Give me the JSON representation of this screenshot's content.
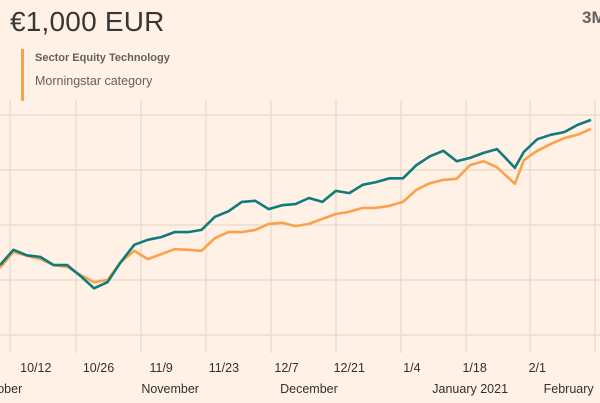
{
  "header": {
    "title": "€1,000 EUR",
    "range_button": "3M"
  },
  "legend": {
    "name": "Sector Equity Technology",
    "subtitle": "Morningstar category"
  },
  "colors": {
    "background": "#fff1e5",
    "fund": "#0f7b7c",
    "category": "#f9a24b",
    "grid": "#ecdccb"
  },
  "chart_data": {
    "type": "line",
    "title": "€1,000 EUR",
    "xlabel": "",
    "ylabel": "",
    "grid": true,
    "legend_position": "top-left",
    "xlim": [
      "2020-10-04",
      "2021-02-15"
    ],
    "ylim": [
      0,
      4
    ],
    "x_tick_labels": [
      {
        "date": "2020-10-12",
        "label": "10/12"
      },
      {
        "date": "2020-10-26",
        "label": "10/26"
      },
      {
        "date": "2020-11-09",
        "label": "11/9"
      },
      {
        "date": "2020-11-23",
        "label": "11/23"
      },
      {
        "date": "2020-12-07",
        "label": "12/7"
      },
      {
        "date": "2020-12-21",
        "label": "12/21"
      },
      {
        "date": "2021-01-04",
        "label": "1/4"
      },
      {
        "date": "2021-01-18",
        "label": "1/18"
      },
      {
        "date": "2021-02-01",
        "label": "2/1"
      }
    ],
    "month_labels": [
      {
        "date": "2020-10-04",
        "label": "October"
      },
      {
        "date": "2020-11-11",
        "label": "November"
      },
      {
        "date": "2020-12-12",
        "label": "December"
      },
      {
        "date": "2021-01-17",
        "label": "January 2021"
      },
      {
        "date": "2021-02-08",
        "label": "February"
      }
    ],
    "x": [
      "2020-10-04",
      "2020-10-07",
      "2020-10-10",
      "2020-10-13",
      "2020-10-16",
      "2020-10-19",
      "2020-10-22",
      "2020-10-25",
      "2020-10-28",
      "2020-10-31",
      "2020-11-03",
      "2020-11-06",
      "2020-11-09",
      "2020-11-12",
      "2020-11-15",
      "2020-11-18",
      "2020-11-21",
      "2020-11-24",
      "2020-11-27",
      "2020-11-30",
      "2020-12-03",
      "2020-12-06",
      "2020-12-09",
      "2020-12-12",
      "2020-12-15",
      "2020-12-18",
      "2020-12-21",
      "2020-12-24",
      "2020-12-27",
      "2020-12-30",
      "2021-01-02",
      "2021-01-05",
      "2021-01-08",
      "2021-01-11",
      "2021-01-14",
      "2021-01-17",
      "2021-01-20",
      "2021-01-23",
      "2021-01-27",
      "2021-01-29",
      "2021-02-01",
      "2021-02-04",
      "2021-02-07",
      "2021-02-10",
      "2021-02-13"
    ],
    "series": [
      {
        "key": "fund",
        "values": [
          1.27,
          1.55,
          1.45,
          1.42,
          1.27,
          1.27,
          1.07,
          0.85,
          0.96,
          1.33,
          1.64,
          1.73,
          1.78,
          1.87,
          1.87,
          1.91,
          2.15,
          2.25,
          2.42,
          2.44,
          2.29,
          2.36,
          2.38,
          2.49,
          2.42,
          2.62,
          2.58,
          2.73,
          2.78,
          2.85,
          2.85,
          3.09,
          3.25,
          3.35,
          3.16,
          3.22,
          3.31,
          3.38,
          3.04,
          3.33,
          3.56,
          3.64,
          3.69,
          3.82,
          3.91
        ]
      },
      {
        "name": "Sector Equity Technology",
        "key": "category",
        "values": [
          1.22,
          1.51,
          1.44,
          1.38,
          1.27,
          1.24,
          1.09,
          0.96,
          1.0,
          1.33,
          1.53,
          1.38,
          1.47,
          1.56,
          1.55,
          1.53,
          1.76,
          1.87,
          1.87,
          1.91,
          2.02,
          2.04,
          1.98,
          2.02,
          2.11,
          2.2,
          2.24,
          2.31,
          2.31,
          2.35,
          2.42,
          2.64,
          2.76,
          2.82,
          2.84,
          3.09,
          3.16,
          3.05,
          2.75,
          3.18,
          3.35,
          3.47,
          3.58,
          3.64,
          3.75
        ]
      }
    ]
  }
}
